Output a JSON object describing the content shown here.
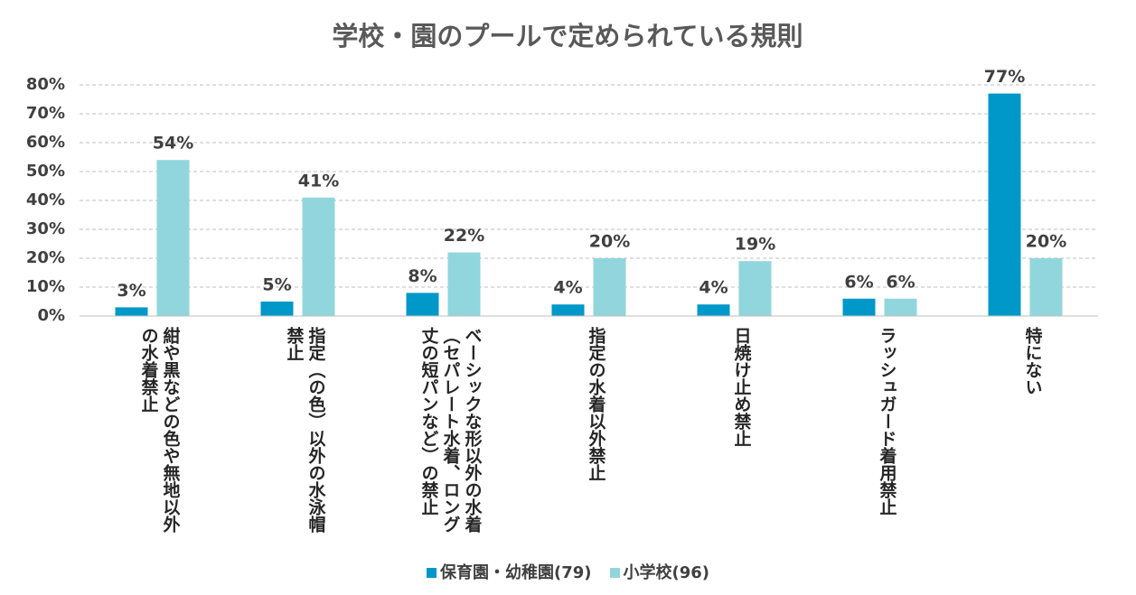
{
  "chart_data": {
    "type": "bar",
    "title": "学校・園のプールで定められている規則",
    "categories": [
      "紺や黒などの色や無地以外の水着禁止",
      "指定（の色）以外の水泳帽禁止",
      "ベーシックな形以外の水着（セパレート水着、ロング丈の短パンなど）の禁止",
      "指定の水着以外禁止",
      "日焼け止め禁止",
      "ラッシュガード着用禁止",
      "特にない"
    ],
    "series": [
      {
        "name": "保育園・幼稚園(79)",
        "color": "#0097c9",
        "values": [
          3,
          5,
          8,
          4,
          4,
          6,
          77
        ],
        "value_labels": [
          "3%",
          "5%",
          "8%",
          "4%",
          "4%",
          "6%",
          "77%"
        ]
      },
      {
        "name": "小学校(96)",
        "color": "#92d6dd",
        "values": [
          54,
          41,
          22,
          20,
          19,
          6,
          20
        ],
        "value_labels": [
          "54%",
          "41%",
          "22%",
          "20%",
          "19%",
          "6%",
          "20%"
        ]
      }
    ],
    "ylim": [
      0,
      80
    ],
    "yticks": [
      {
        "value": 0,
        "label": "0%"
      },
      {
        "value": 10,
        "label": "10%"
      },
      {
        "value": 20,
        "label": "20%"
      },
      {
        "value": 30,
        "label": "30%"
      },
      {
        "value": 40,
        "label": "40%"
      },
      {
        "value": 50,
        "label": "50%"
      },
      {
        "value": 60,
        "label": "60%"
      },
      {
        "value": 70,
        "label": "70%"
      },
      {
        "value": 80,
        "label": "80%"
      }
    ],
    "grid": true,
    "legend": "bottom"
  }
}
